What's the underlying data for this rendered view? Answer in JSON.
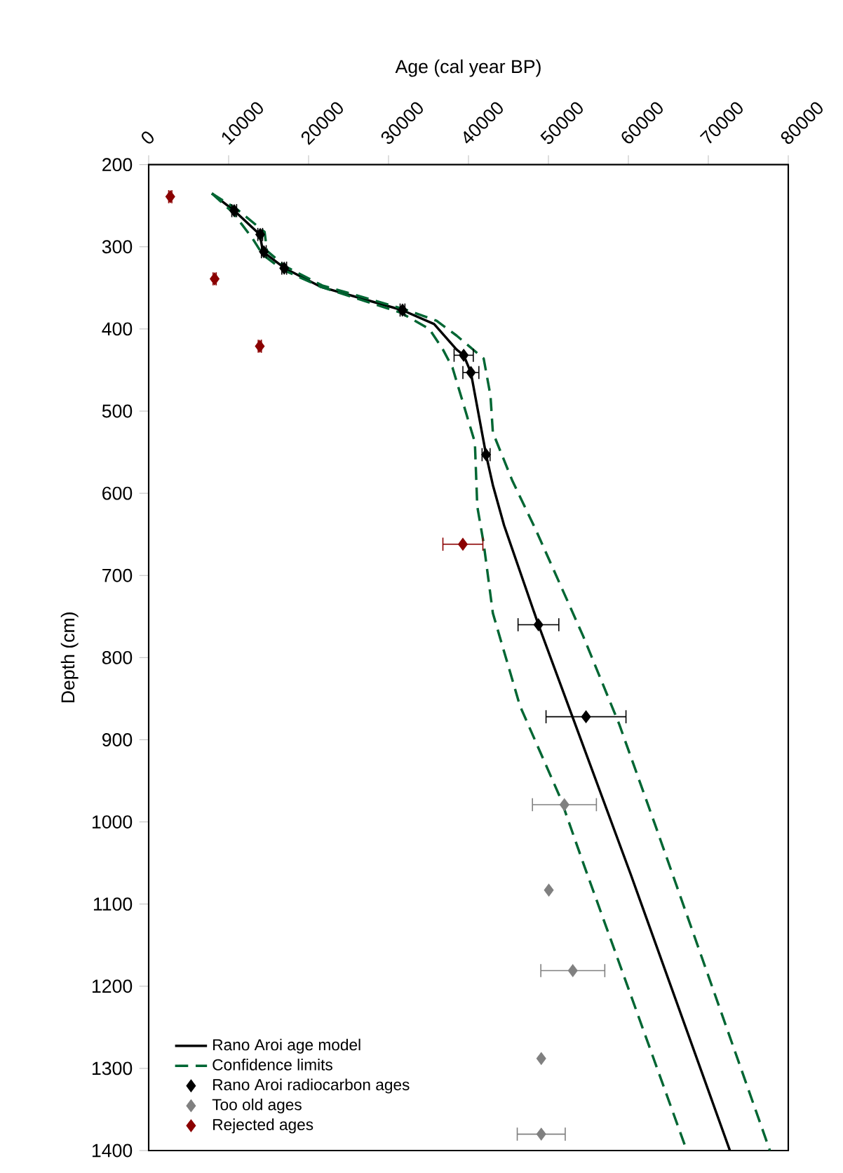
{
  "chart_data": {
    "type": "line",
    "xlabel": "Age (cal year BP)",
    "ylabel": "Depth (cm)",
    "xlim": [
      0,
      80000
    ],
    "ylim": [
      1400,
      200
    ],
    "xticks": [
      0,
      10000,
      20000,
      30000,
      40000,
      50000,
      60000,
      70000,
      80000
    ],
    "yticks": [
      200,
      300,
      400,
      500,
      600,
      700,
      800,
      900,
      1000,
      1100,
      1200,
      1300,
      1400
    ],
    "legend": "bottom left",
    "grid": false,
    "series": [
      {
        "name": "Rano Aroi age model",
        "color": "#000000",
        "line_style": "solid",
        "x": [
          7900,
          10700,
          13900,
          14300,
          17000,
          21600,
          31700,
          35700,
          38500,
          39400,
          40300,
          42200,
          43050,
          44450,
          48750,
          60300,
          72700
        ],
        "values": [
          235,
          256,
          285,
          306,
          326,
          349,
          377,
          394,
          425,
          432,
          453,
          553,
          590,
          639,
          760,
          1064,
          1400
        ]
      },
      {
        "name": "Confidence limits",
        "color": "#006633",
        "line_style": "dashed",
        "x": [
          7900,
          10500,
          13000,
          14300,
          16800,
          21600,
          31500,
          35100,
          36800,
          38000,
          40800,
          41100,
          41900,
          43050,
          46450,
          51500,
          54350,
          67300
        ],
        "values": [
          235,
          258,
          290,
          310,
          328,
          349,
          380,
          400,
          425,
          447,
          538,
          616,
          661,
          746,
          859,
          971,
          1050,
          1400
        ]
      },
      {
        "color": "#006633",
        "line_style": "dashed",
        "x": [
          7900,
          11000,
          14500,
          14800,
          17100,
          21700,
          32000,
          36000,
          38500,
          41900,
          42750,
          43050,
          45500,
          48400,
          54350,
          58850,
          63400,
          77700
        ],
        "values": [
          235,
          254,
          282,
          305,
          324,
          347,
          376,
          390,
          408,
          436,
          481,
          526,
          585,
          644,
          774,
          881,
          1005,
          1400
        ]
      },
      {
        "name": "Rano Aroi radiocarbon ages",
        "type": "scatter",
        "color": "#000000",
        "marker": "diamond",
        "x": [
          10700,
          13950,
          14400,
          16950,
          31750,
          39400,
          40300,
          42200,
          48750,
          54700
        ],
        "values": [
          256,
          285,
          306,
          326,
          377,
          432,
          453,
          553,
          760,
          872
        ],
        "xerrors": [
          300,
          300,
          300,
          300,
          300,
          1200,
          1000,
          500,
          2550,
          5000
        ]
      },
      {
        "name": "Too old ages",
        "type": "scatter",
        "color": "#808080",
        "marker": "diamond",
        "x": [
          52000,
          50050,
          53050,
          49100,
          49100
        ],
        "values": [
          979,
          1083,
          1181,
          1288,
          1380
        ],
        "xerrors": [
          4000,
          null,
          4000,
          null,
          3000
        ]
      },
      {
        "name": "Rejected ages",
        "type": "scatter",
        "color": "#8b0000",
        "marker": "diamond",
        "x": [
          2700,
          8250,
          13900,
          39300
        ],
        "values": [
          239,
          339,
          421,
          662
        ],
        "xerrors": [
          200,
          200,
          200,
          2500
        ]
      }
    ]
  }
}
